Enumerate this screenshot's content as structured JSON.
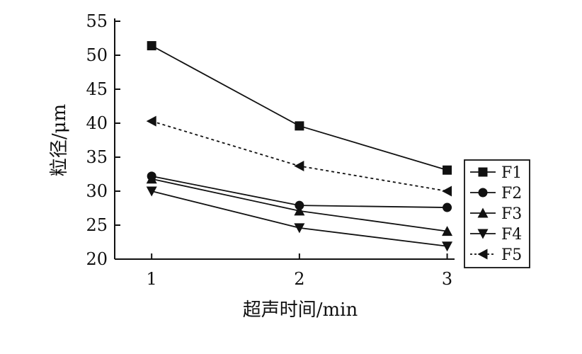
{
  "chart_data": {
    "type": "line",
    "xlabel": "超声时间/min",
    "ylabel": "粒径/μm",
    "categories": [
      "1",
      "2",
      "3"
    ],
    "x": [
      1,
      2,
      3
    ],
    "xlim": [
      0.75,
      3.05
    ],
    "ylim": [
      20,
      55
    ],
    "yticks": [
      20,
      25,
      30,
      35,
      40,
      45,
      50,
      55
    ],
    "grid": false,
    "legend_position": "right",
    "series": [
      {
        "name": "F1",
        "marker": "square",
        "line": "solid",
        "values": [
          51.4,
          39.6,
          33.1
        ]
      },
      {
        "name": "F2",
        "marker": "circle",
        "line": "solid",
        "values": [
          32.2,
          27.9,
          27.6
        ]
      },
      {
        "name": "F3",
        "marker": "triangle-up",
        "line": "solid",
        "values": [
          31.8,
          27.1,
          24.1
        ]
      },
      {
        "name": "F4",
        "marker": "triangle-down",
        "line": "solid",
        "values": [
          30.0,
          24.6,
          21.9
        ]
      },
      {
        "name": "F5",
        "marker": "triangle-left",
        "line": "dashed",
        "values": [
          40.3,
          33.7,
          30.0
        ]
      }
    ]
  }
}
